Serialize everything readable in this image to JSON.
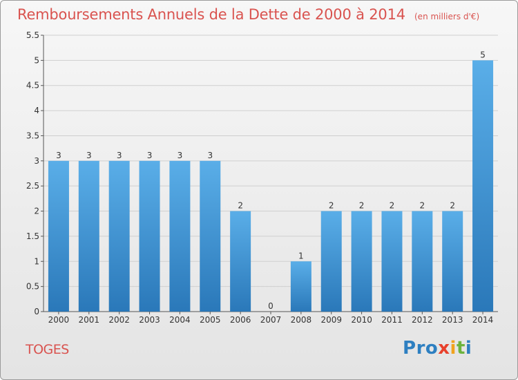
{
  "header": {
    "title": "Remboursements Annuels de la Dette de 2000 à 2014",
    "subtitle": "(en milliers d'€)"
  },
  "commune": "TOGES",
  "logo": {
    "text": "Proxiti",
    "letters": [
      {
        "ch": "P",
        "color": "#2d7fc1"
      },
      {
        "ch": "r",
        "color": "#2d7fc1"
      },
      {
        "ch": "o",
        "color": "#2d7fc1"
      },
      {
        "ch": "x",
        "color": "#e8412c"
      },
      {
        "ch": "i",
        "color": "#f1a31e"
      },
      {
        "ch": "t",
        "color": "#6cb33e"
      },
      {
        "ch": "i",
        "color": "#2d7fc1"
      }
    ]
  },
  "colors": {
    "bar_top": "#5aaee8",
    "bar_bottom": "#2a78b9",
    "axis": "#555555",
    "grid": "#cfcfcf",
    "title": "#d9534f"
  },
  "chart_data": {
    "type": "bar",
    "categories": [
      "2000",
      "2001",
      "2002",
      "2003",
      "2004",
      "2005",
      "2006",
      "2007",
      "2008",
      "2009",
      "2010",
      "2011",
      "2012",
      "2013",
      "2014"
    ],
    "values": [
      3,
      3,
      3,
      3,
      3,
      3,
      2,
      0,
      1,
      2,
      2,
      2,
      2,
      2,
      5
    ],
    "data_labels": [
      "3",
      "3",
      "3",
      "3",
      "3",
      "3",
      "2",
      "0",
      "1",
      "2",
      "2",
      "2",
      "2",
      "2",
      "5"
    ],
    "yticks": [
      "0",
      "0.5",
      "1",
      "1.5",
      "2",
      "2.5",
      "3",
      "3.5",
      "4",
      "4.5",
      "5",
      "5.5"
    ],
    "ylim": [
      0,
      5.5
    ],
    "grid": true
  }
}
